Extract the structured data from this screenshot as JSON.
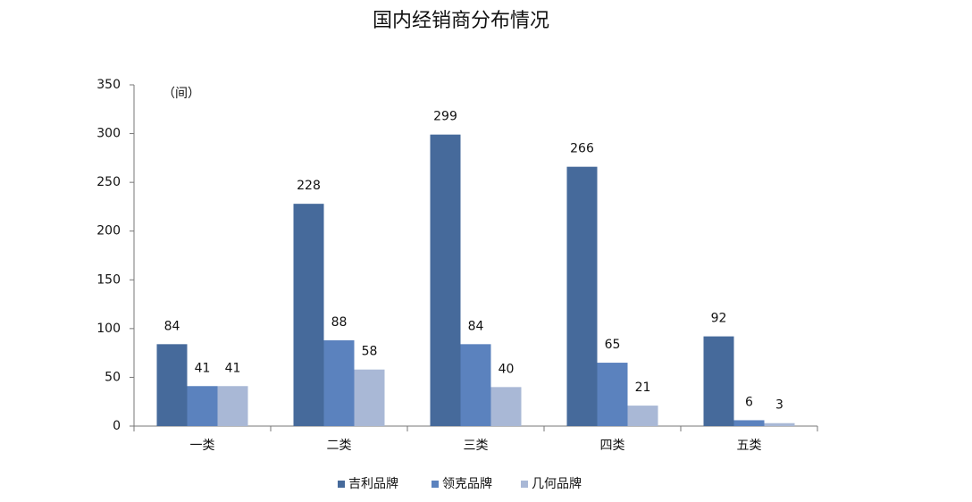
{
  "chart_data": {
    "type": "bar",
    "title": "国内经销商分布情况",
    "annotation": "（间）",
    "categories": [
      "一类",
      "二类",
      "三类",
      "四类",
      "五类"
    ],
    "series": [
      {
        "name": "吉利品牌",
        "color": "#466a9b",
        "values": [
          84,
          228,
          299,
          266,
          92
        ]
      },
      {
        "name": "领克品牌",
        "color": "#5b82be",
        "values": [
          41,
          88,
          84,
          65,
          6
        ]
      },
      {
        "name": "几何品牌",
        "color": "#a9b8d6",
        "values": [
          41,
          58,
          40,
          21,
          3
        ]
      }
    ],
    "ylim": [
      0,
      350
    ],
    "yticks": [
      0,
      50,
      100,
      150,
      200,
      250,
      300,
      350
    ],
    "grid": false,
    "legend": "bottom"
  }
}
